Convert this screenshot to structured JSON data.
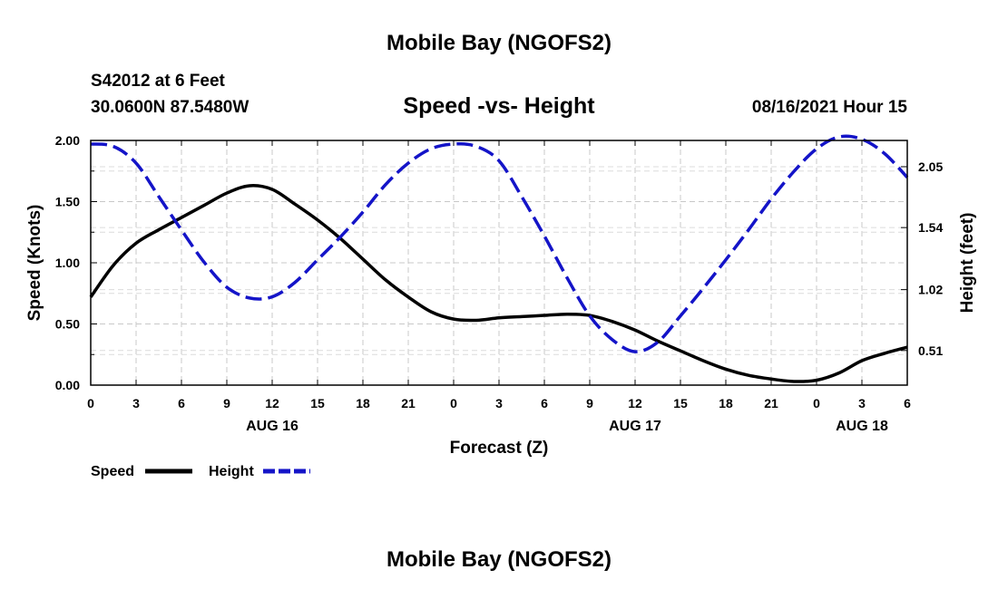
{
  "page": {
    "title_top": "Mobile Bay (NGOFS2)",
    "title_bottom": "Mobile Bay (NGOFS2)"
  },
  "header": {
    "station": "S42012 at 6 Feet",
    "coords": "30.0600N  87.5480W",
    "plot_title": "Speed -vs- Height",
    "datetime": "08/16/2021 Hour 15"
  },
  "chart_data": {
    "type": "line",
    "title": "Speed -vs- Height",
    "xlabel": "Forecast (Z)",
    "ylabel": "Speed (Knots)",
    "y2label": "Height (feet)",
    "xlim": [
      0,
      54
    ],
    "ylim": [
      0,
      2.0
    ],
    "y2lim": [
      0.22,
      2.27
    ],
    "x_tick_values": [
      0,
      3,
      6,
      9,
      12,
      15,
      18,
      21,
      24,
      27,
      30,
      33,
      36,
      39,
      42,
      45,
      48,
      51,
      54
    ],
    "x_tick_labels": [
      "0",
      "3",
      "6",
      "9",
      "12",
      "15",
      "18",
      "21",
      "0",
      "3",
      "6",
      "9",
      "12",
      "15",
      "18",
      "21",
      "0",
      "3",
      "6"
    ],
    "day_labels": [
      {
        "x": 12,
        "label": "AUG 16"
      },
      {
        "x": 36,
        "label": "AUG 17"
      },
      {
        "x": 51,
        "label": "AUG 18"
      }
    ],
    "y_ticks": [
      0,
      0.5,
      1.0,
      1.5,
      2.0
    ],
    "y_tick_labels": [
      "0.00",
      "0.50",
      "1.00",
      "1.50",
      "2.00"
    ],
    "y2_ticks": [
      0.51,
      1.02,
      1.54,
      2.05
    ],
    "y2_tick_labels": [
      "0.51",
      "1.02",
      "1.54",
      "2.05"
    ],
    "grid": true,
    "legend": "bottom-left",
    "series": [
      {
        "name": "Speed",
        "axis": "left",
        "color": "#000000",
        "style": "solid",
        "x": [
          0,
          1.5,
          3,
          4.5,
          6,
          7.5,
          9,
          10.5,
          12,
          13.5,
          15,
          16.5,
          18,
          19.5,
          21,
          22.5,
          24,
          25.5,
          27,
          28.5,
          30,
          31.5,
          33,
          34.5,
          36,
          37.5,
          39,
          40.5,
          42,
          43.5,
          45,
          46.5,
          48,
          49.5,
          51,
          52.5,
          54
        ],
        "values": [
          0.72,
          0.98,
          1.16,
          1.27,
          1.37,
          1.47,
          1.57,
          1.63,
          1.6,
          1.48,
          1.35,
          1.2,
          1.03,
          0.86,
          0.72,
          0.6,
          0.54,
          0.53,
          0.55,
          0.56,
          0.57,
          0.58,
          0.57,
          0.52,
          0.45,
          0.36,
          0.28,
          0.2,
          0.13,
          0.08,
          0.05,
          0.03,
          0.04,
          0.1,
          0.2,
          0.26,
          0.31
        ]
      },
      {
        "name": "Height",
        "axis": "right",
        "color": "#1414c8",
        "style": "dashed",
        "x": [
          0,
          1.5,
          3,
          4.5,
          6,
          7.5,
          9,
          10.5,
          12,
          13.5,
          15,
          16.5,
          18,
          19.5,
          21,
          22.5,
          24,
          25.5,
          27,
          28.5,
          30,
          31.5,
          33,
          34.5,
          36,
          37.5,
          39,
          40.5,
          42,
          43.5,
          45,
          46.5,
          48,
          49.5,
          51,
          52.5,
          54
        ],
        "values": [
          2.24,
          2.22,
          2.08,
          1.8,
          1.52,
          1.25,
          1.04,
          0.95,
          0.96,
          1.08,
          1.27,
          1.46,
          1.67,
          1.9,
          2.08,
          2.2,
          2.24,
          2.22,
          2.1,
          1.8,
          1.47,
          1.12,
          0.8,
          0.6,
          0.5,
          0.58,
          0.8,
          1.03,
          1.27,
          1.52,
          1.78,
          2.01,
          2.2,
          2.3,
          2.28,
          2.16,
          1.96
        ]
      }
    ]
  }
}
